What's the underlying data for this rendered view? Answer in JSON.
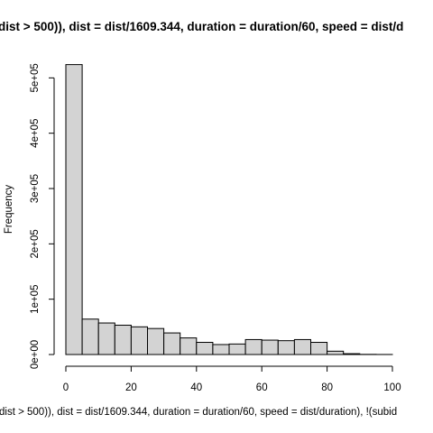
{
  "chart_data": {
    "type": "bar",
    "title": "dist > 500)), dist = dist/1609.344, duration = duration/60, speed = dist/d",
    "xlabel": "dist > 500)), dist = dist/1609.344, duration = duration/60, speed = dist/duration), !(subid",
    "ylabel": "Frequency",
    "bin_width": 5,
    "bins_start": [
      0,
      5,
      10,
      15,
      20,
      25,
      30,
      35,
      40,
      45,
      50,
      55,
      60,
      65,
      70,
      75,
      80,
      85,
      90,
      95
    ],
    "values": [
      524000,
      64000,
      57000,
      53000,
      50000,
      47000,
      39000,
      30000,
      22000,
      18000,
      19000,
      27000,
      26000,
      25000,
      27000,
      22000,
      6000,
      1500,
      300,
      100
    ],
    "xlim": [
      0,
      100
    ],
    "ylim": [
      0,
      525000
    ],
    "x_ticks": [
      0,
      20,
      40,
      60,
      80,
      100
    ],
    "y_ticks": [
      0,
      100000,
      200000,
      300000,
      400000,
      500000
    ],
    "y_tick_labels": [
      "0e+00",
      "1e+05",
      "2e+05",
      "3e+05",
      "4e+05",
      "5e+05"
    ],
    "bar_fill": "#d3d3d3",
    "bar_stroke": "#000000",
    "grid": false
  }
}
